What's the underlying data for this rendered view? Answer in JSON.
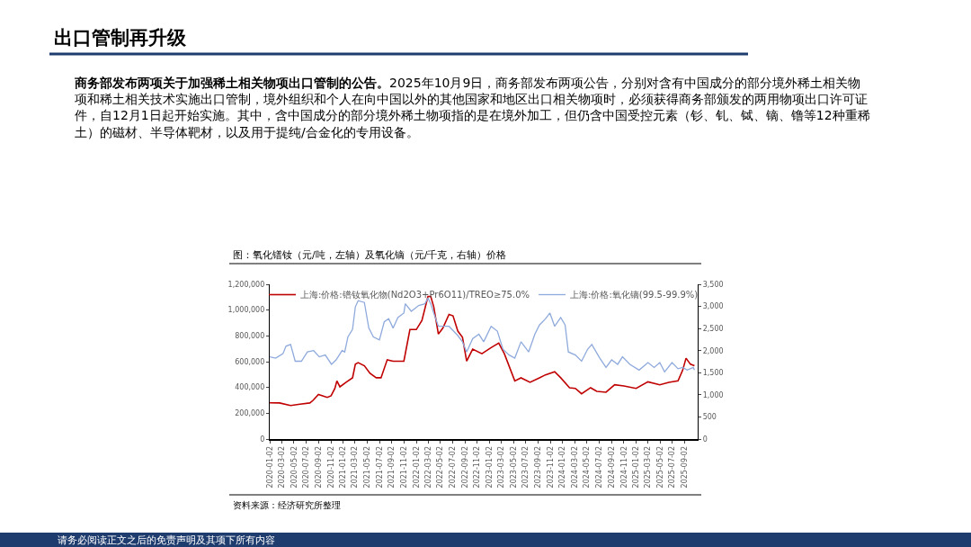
{
  "chart_data": {
    "type": "line",
    "title": "出口管制再升级",
    "subtitle": "商务部发布两项关于加强稀土相关物项出口管制的公告。2025年10月9日，商务部发布两项公告，分别对含有中国成分的部分境外稀土相关物项和稀土相关技术实施出口管制，境外组织和个人在向中国以外的其他国家和地区出口相关物项时，必须获得商务部颁发的两用物项出口许可证件，自12月1日起开始实施。其中，含中国成分的部分境外稀土物项指的是在境外加工，但仍含中国受控元素（钐、钆、铽、镝、镥等12种重稀土）的磁材、半导体靶材，以及用于提纯/合金化的专用设备。",
    "annotations": [
      "图：氧化镨钕（元/吨，左轴）及氧化镝（元/千克，右轴）价格",
      "资料来源：经济研究所整理",
      "请务必阅读正文之后的免责声明及其项下所有内容"
    ],
    "xlim": [
      "2020-01-02",
      "2025-11-05"
    ],
    "xticks": [
      "2020-01-02",
      "2020-03-02",
      "2020-05-02",
      "2020-07-02",
      "2020-09-02",
      "2020-11-02",
      "2021-01-02",
      "2021-03-02",
      "2021-05-02",
      "2021-07-02",
      "2021-09-02",
      "2021-11-02",
      "2022-01-02",
      "2022-03-02",
      "2022-05-02",
      "2022-07-02",
      "2022-09-02",
      "2022-11-02",
      "2023-01-02",
      "2023-03-02",
      "2023-05-02",
      "2023-07-02",
      "2023-09-02",
      "2023-11-02",
      "2024-01-02",
      "2024-03-02",
      "2024-05-02",
      "2024-07-02",
      "2024-09-02",
      "2024-11-02",
      "2025-01-02",
      "2025-03-02",
      "2025-05-02",
      "2025-07-02",
      "2025-09-02"
    ],
    "ylim": [
      0,
      1200000
    ],
    "yticks": [
      0,
      {
        "value": 200000,
        "label": "200,000"
      },
      {
        "value": 400000,
        "label": "400,000"
      },
      {
        "value": 600000,
        "label": "600,000"
      },
      {
        "value": 800000,
        "label": "800,000"
      },
      {
        "value": 1000000,
        "label": "1,000,000"
      },
      {
        "value": 1200000,
        "label": "1,200,000"
      }
    ],
    "y2lim": [
      0,
      3500
    ],
    "y2ticks": [
      0,
      500,
      {
        "value": 1000,
        "label": "1,000"
      },
      {
        "value": 1500,
        "label": "1,500"
      },
      {
        "value": 2000,
        "label": "2,000"
      },
      {
        "value": 2500,
        "label": "2,500"
      },
      {
        "value": 3000,
        "label": "3,000"
      },
      {
        "value": 3500,
        "label": "3,500"
      }
    ],
    "legend": "top",
    "marker": "none",
    "line_style": "solid",
    "series": [
      {
        "name": "上海:价格:镨钕氧化物(Nd2O3+Pr6O11)/TREO≥75.0%",
        "color": "#c00000",
        "x": [
          "2020-01-02",
          "2020-02-20",
          "2020-04-15",
          "2020-06-01",
          "2020-07-20",
          "2020-08-05",
          "2020-09-01",
          "2020-10-15",
          "2020-11-03",
          "2020-11-22",
          "2020-12-02",
          "2020-12-17",
          "2021-01-20",
          "2021-02-18",
          "2021-03-04",
          "2021-03-18",
          "2021-04-18",
          "2021-05-16",
          "2021-06-16",
          "2021-07-10",
          "2021-08-10",
          "2021-09-08",
          "2021-11-01",
          "2021-12-01",
          "2022-01-02",
          "2022-01-30",
          "2022-03-01",
          "2022-03-15",
          "2022-03-30",
          "2022-04-22",
          "2022-05-14",
          "2022-06-14",
          "2022-07-04",
          "2022-07-28",
          "2022-08-20",
          "2022-09-10",
          "2022-10-10",
          "2022-11-25",
          "2023-01-10",
          "2023-02-17",
          "2023-03-17",
          "2023-05-08",
          "2023-06-08",
          "2023-07-23",
          "2023-09-08",
          "2023-10-08",
          "2023-11-23",
          "2023-12-23",
          "2024-02-05",
          "2024-03-05",
          "2024-04-05",
          "2024-05-20",
          "2024-06-20",
          "2024-08-05",
          "2024-09-17",
          "2024-11-02",
          "2025-01-02",
          "2025-03-02",
          "2025-04-30",
          "2025-06-14",
          "2025-07-30",
          "2025-08-22",
          "2025-09-08",
          "2025-09-30",
          "2025-10-20"
        ],
        "values": [
          281000,
          280000,
          260000,
          270000,
          280000,
          300000,
          346000,
          323000,
          335000,
          393000,
          451000,
          405000,
          444000,
          475000,
          580000,
          592000,
          568000,
          510000,
          475000,
          475000,
          615000,
          604000,
          604000,
          849000,
          849000,
          920000,
          1106000,
          1106000,
          1025000,
          814000,
          860000,
          966000,
          955000,
          837000,
          790000,
          604000,
          697000,
          662000,
          709000,
          744000,
          662000,
          451000,
          475000,
          440000,
          475000,
          498000,
          522000,
          475000,
          398000,
          393000,
          351000,
          398000,
          370000,
          363000,
          421000,
          412000,
          393000,
          444000,
          421000,
          440000,
          451000,
          533000,
          627000,
          580000,
          568000
        ]
      },
      {
        "name": "上海:价格:氧化镝(99.5-99.9%)",
        "color": "#8faadc",
        "axis": "y2",
        "x": [
          "2020-01-02",
          "2020-02-01",
          "2020-03-08",
          "2020-03-23",
          "2020-04-15",
          "2020-05-08",
          "2020-06-08",
          "2020-07-08",
          "2020-08-08",
          "2020-09-05",
          "2020-10-05",
          "2020-11-05",
          "2020-11-28",
          "2020-12-28",
          "2021-01-10",
          "2021-01-26",
          "2021-02-18",
          "2021-03-04",
          "2021-03-18",
          "2021-04-18",
          "2021-05-10",
          "2021-06-02",
          "2021-07-02",
          "2021-07-26",
          "2021-08-17",
          "2021-09-08",
          "2021-10-02",
          "2021-11-01",
          "2021-11-08",
          "2021-12-08",
          "2022-01-14",
          "2022-02-14",
          "2022-03-01",
          "2022-03-15",
          "2022-03-30",
          "2022-04-22",
          "2022-06-14",
          "2022-07-28",
          "2022-08-20",
          "2022-09-10",
          "2022-10-10",
          "2022-11-10",
          "2022-12-04",
          "2023-01-10",
          "2023-02-10",
          "2023-03-10",
          "2023-04-10",
          "2023-05-08",
          "2023-06-08",
          "2023-07-16",
          "2023-08-16",
          "2023-09-08",
          "2023-10-08",
          "2023-10-30",
          "2023-11-23",
          "2023-12-23",
          "2024-01-14",
          "2024-01-30",
          "2024-03-05",
          "2024-04-05",
          "2024-05-05",
          "2024-05-26",
          "2024-07-05",
          "2024-08-05",
          "2024-09-02",
          "2024-10-02",
          "2024-10-26",
          "2024-12-02",
          "2025-01-17",
          "2025-03-02",
          "2025-04-02",
          "2025-04-30",
          "2025-05-24",
          "2025-06-30",
          "2025-07-30",
          "2025-08-22",
          "2025-09-14",
          "2025-10-14",
          "2025-10-20"
        ],
        "values": [
          1860,
          1830,
          1930,
          2100,
          2140,
          1760,
          1760,
          1970,
          2000,
          1860,
          1900,
          1690,
          1790,
          2000,
          1970,
          2310,
          2480,
          2990,
          3130,
          3090,
          2510,
          2310,
          2240,
          2650,
          2720,
          2510,
          2750,
          2850,
          3060,
          2890,
          3020,
          3060,
          3190,
          3060,
          2850,
          2550,
          2550,
          2340,
          2200,
          1970,
          2270,
          2370,
          2200,
          2550,
          2440,
          2030,
          1900,
          1830,
          2200,
          1970,
          2370,
          2580,
          2720,
          2850,
          2550,
          2750,
          2580,
          1970,
          1900,
          1760,
          2030,
          2140,
          1830,
          1620,
          1790,
          1690,
          1860,
          1690,
          1560,
          1730,
          1620,
          1730,
          1520,
          1730,
          1590,
          1620,
          1560,
          1620,
          1560
        ]
      }
    ]
  }
}
